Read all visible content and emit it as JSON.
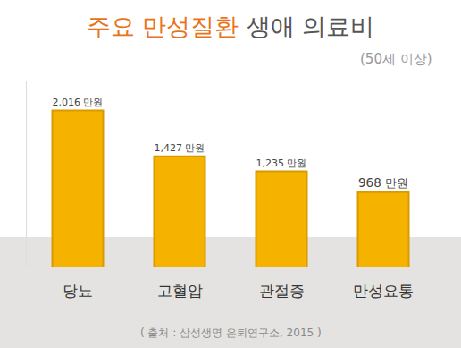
{
  "chart_data": {
    "type": "bar",
    "title": "주요 만성질환 생애 의료비",
    "subtitle": "(50세 이상)",
    "source": "( 출처 : 삼성생명 은퇴연구소, 2015 )",
    "categories": [
      "당뇨",
      "고혈압",
      "관절증",
      "만성요통"
    ],
    "values": [
      2016,
      1427,
      1235,
      968
    ],
    "value_labels": [
      "2,016 만원",
      "1,427 만원",
      "1,235 만원",
      "968 만원"
    ],
    "data_labels": true,
    "color": "#f5b300",
    "ylim": [
      0,
      2400
    ],
    "tick_labels": "x",
    "grid": false
  }
}
